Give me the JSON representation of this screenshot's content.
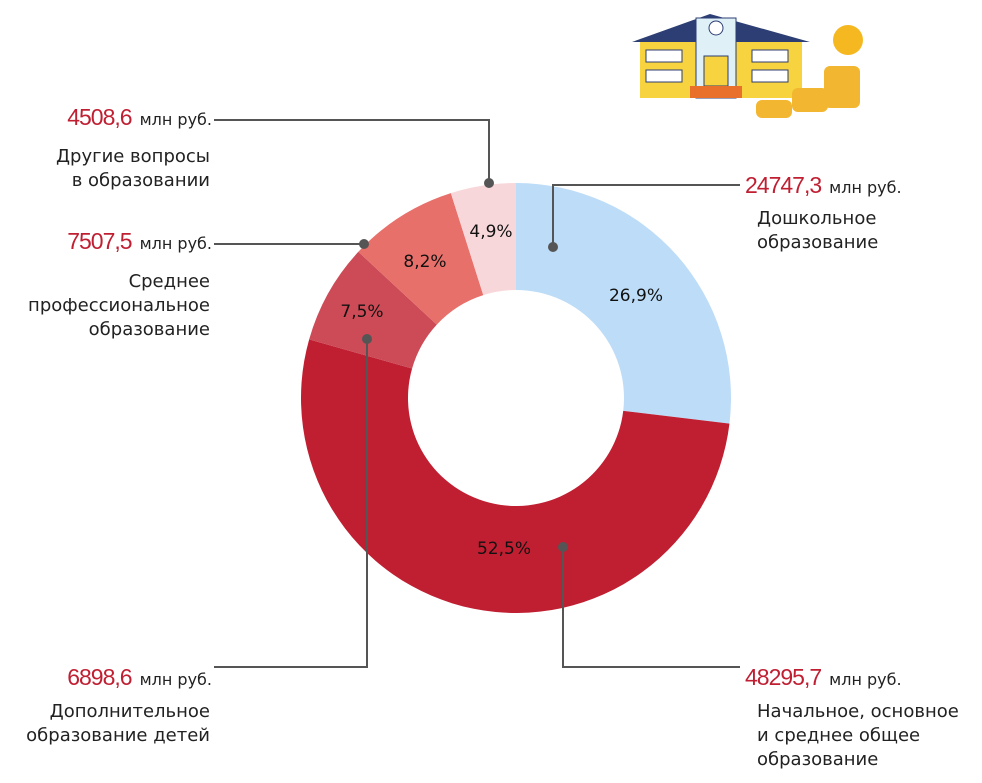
{
  "chart_data": {
    "type": "donut",
    "unit": "млн руб.",
    "categories": [
      "Дошкольное\nобразование",
      "Начальное, основное\nи среднее общее\nобразование",
      "Дополнительное\nобразование детей",
      "Среднее\nпрофессиональное\nобразование",
      "Другие вопросы\nв образовании"
    ],
    "values": [
      26.9,
      52.5,
      7.5,
      8.2,
      4.9
    ],
    "value_labels": [
      "26,9%",
      "52,5%",
      "7,5%",
      "8,2%",
      "4,9%"
    ],
    "amounts": [
      24747.3,
      48295.7,
      6898.6,
      7507.5,
      4508.6
    ],
    "amount_labels": [
      "24747,3",
      "48295,7",
      "6898,6",
      "7507,5",
      "4508,6"
    ],
    "colors": [
      "#bddcf7",
      "#c01f32",
      "#cc4b57",
      "#e8706a",
      "#f8d7da"
    ]
  }
}
